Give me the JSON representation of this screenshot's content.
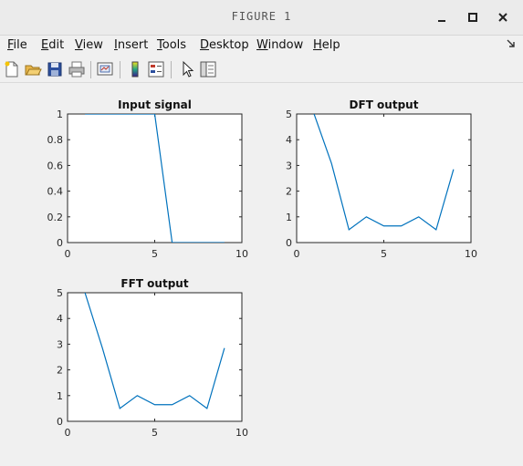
{
  "window": {
    "title": "FIGURE 1",
    "controls": {
      "minimize": "–",
      "maximize": "□",
      "close": "✕"
    }
  },
  "menubar": {
    "items": [
      {
        "label": "File",
        "mnemonic": "F",
        "rest": "ile"
      },
      {
        "label": "Edit",
        "mnemonic": "E",
        "rest": "dit"
      },
      {
        "label": "View",
        "mnemonic": "V",
        "rest": "iew"
      },
      {
        "label": "Insert",
        "mnemonic": "I",
        "rest": "nsert"
      },
      {
        "label": "Tools",
        "mnemonic": "T",
        "rest": "ools"
      },
      {
        "label": "Desktop",
        "mnemonic": "D",
        "rest": "esktop"
      },
      {
        "label": "Window",
        "mnemonic": "W",
        "rest": "indow"
      },
      {
        "label": "Help",
        "mnemonic": "H",
        "rest": "elp"
      }
    ],
    "dock_icon": "dock-arrow-icon"
  },
  "toolbar": {
    "icons": [
      "new-figure-icon",
      "open-file-icon",
      "save-icon",
      "print-icon",
      "link-plot-icon",
      "insert-colorbar-icon",
      "insert-legend-icon",
      "edit-plot-arrow-icon",
      "property-editor-icon"
    ]
  },
  "colors": {
    "line": "#0072bd",
    "background": "#f0f0f0",
    "axes": "#ffffff"
  },
  "chart_data": [
    {
      "type": "line",
      "title": "Input signal",
      "x": [
        1,
        2,
        3,
        4,
        5,
        6,
        7,
        8,
        9
      ],
      "y": [
        1,
        1,
        1,
        1,
        1,
        0,
        0,
        0,
        0
      ],
      "xlim": [
        0,
        10
      ],
      "ylim": [
        0,
        1
      ],
      "xticks": [
        "0",
        "5",
        "10"
      ],
      "yticks": [
        "0",
        "0.2",
        "0.4",
        "0.6",
        "0.8",
        "1"
      ],
      "grid": false
    },
    {
      "type": "line",
      "title": "DFT output",
      "x": [
        1,
        2,
        3,
        4,
        5,
        6,
        7,
        8,
        9
      ],
      "y": [
        5,
        3.0777,
        0.5,
        1.0,
        0.647,
        0.647,
        1.0,
        0.5,
        2.848
      ],
      "xlim": [
        0,
        10
      ],
      "ylim": [
        0,
        5
      ],
      "xticks": [
        "0",
        "5",
        "10"
      ],
      "yticks": [
        "0",
        "1",
        "2",
        "3",
        "4",
        "5"
      ],
      "grid": false
    },
    {
      "type": "line",
      "title": "FFT output",
      "x": [
        1,
        2,
        3,
        4,
        5,
        6,
        7,
        8,
        9
      ],
      "y": [
        5,
        2.848,
        0.5,
        1.0,
        0.647,
        0.647,
        1.0,
        0.5,
        2.848
      ],
      "xlim": [
        0,
        10
      ],
      "ylim": [
        0,
        5
      ],
      "xticks": [
        "0",
        "5",
        "10"
      ],
      "yticks": [
        "0",
        "1",
        "2",
        "3",
        "4",
        "5"
      ],
      "grid": false
    }
  ]
}
